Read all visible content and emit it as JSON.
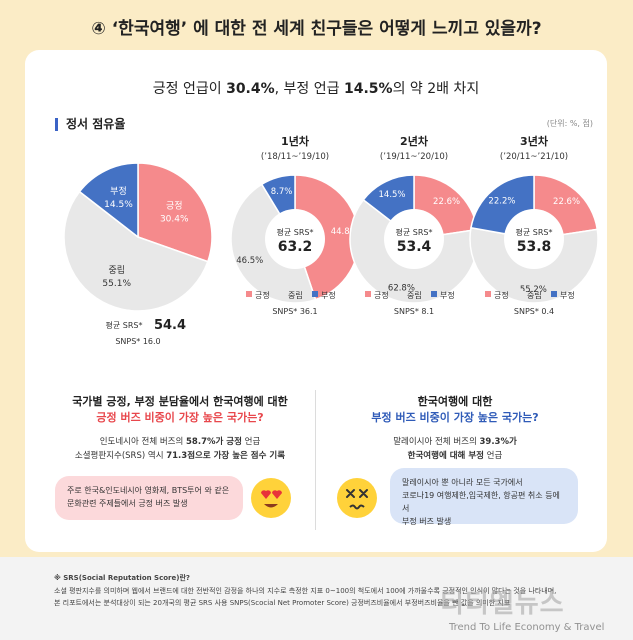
{
  "page": {
    "title": "④ ‘한국여행’ 에 대한 전 세계 친구들은 어떻게 느끼고 있을까?",
    "headline_pre": "긍정 언급이 ",
    "headline_pos": "30.4%",
    "headline_mid": ", 부정 언급 ",
    "headline_neg": "14.5%",
    "headline_post": "의 약 2배 차지",
    "section": "정서 점유율",
    "unit": "(단위: %, 점)"
  },
  "colors": {
    "positive": "#f58a8c",
    "neutral": "#e8e8e8",
    "negative": "#4472c4",
    "accent_pink": "#e8474c",
    "accent_blue": "#2f5bb8"
  },
  "legend": [
    "긍정",
    "중립",
    "부정"
  ],
  "chart_data": [
    {
      "type": "pie",
      "title": "",
      "categories": [
        "긍정",
        "중립",
        "부정"
      ],
      "values": [
        30.4,
        55.1,
        14.5
      ],
      "srs_label": "평균 SRS*",
      "srs": "54.4",
      "snps_label": "SNPS*",
      "snps": "16.0"
    },
    {
      "type": "pie",
      "title": "1년차",
      "subtitle": "(’18/11~’19/10)",
      "categories": [
        "긍정",
        "중립",
        "부정"
      ],
      "values": [
        44.8,
        46.5,
        8.7
      ],
      "srs_label": "평균 SRS*",
      "srs": "63.2",
      "snps_label": "SNPS*",
      "snps": "36.1"
    },
    {
      "type": "pie",
      "title": "2년차",
      "subtitle": "(’19/11~’20/10)",
      "categories": [
        "긍정",
        "중립",
        "부정"
      ],
      "values": [
        22.6,
        62.8,
        14.5
      ],
      "srs_label": "평균 SRS*",
      "srs": "53.4",
      "snps_label": "SNPS*",
      "snps": "8.1"
    },
    {
      "type": "pie",
      "title": "3년차",
      "subtitle": "(’20/11~’21/10)",
      "categories": [
        "긍정",
        "중립",
        "부정"
      ],
      "values": [
        22.6,
        55.2,
        22.2
      ],
      "srs_label": "평균 SRS*",
      "srs": "53.8",
      "snps_label": "SNPS*",
      "snps": "0.4"
    }
  ],
  "left_q": {
    "line1": "국가별 긍정, 부정 분담율에서 한국여행에 대한",
    "line2": "긍정 버즈 비중이 가장 높은 국가는?",
    "desc1_pre": "인도네시아 전체 버즈의 ",
    "desc1_bold": "58.7%가 긍정",
    "desc1_post": " 언급",
    "desc2_pre": "소셜평판지수(SRS) 역시 ",
    "desc2_bold": "71.3점으로 가장 높은 점수 기록",
    "bubble1": "주로 한국&인도네시아 영화제, BTS투어 와 같은",
    "bubble2": "문화관련 주제들에서 긍정 버즈 발생"
  },
  "right_q": {
    "line1": "한국여행에 대한",
    "line2": "부정 버즈 비중이 가장 높은 국가는?",
    "desc1_pre": "말레이시아 전체 버즈의 ",
    "desc1_bold": "39.3%가",
    "desc2_bold": "한국여행에 대해 부정",
    "desc2_post": " 언급",
    "bubble1": "말레이시아 뿐 아니라 모든 국가에서",
    "bubble2": "코로나19 여행제한,입국제한, 항공편 취소 등에서",
    "bubble3": "부정 버즈 발생"
  },
  "footer": {
    "heading": "※ SRS(Social Reputation Score)란?",
    "line1": "소셜 평판지수를 의미하며 웹에서 브랜드에 대한 전반적인 감정을 하나의 지수로 측정한 지표 0~100의 척도에서 100에 가까울수록 긍정적인 인식이 많다는 것을 나타내며,",
    "line2": "본 리포트에서는 분석대상이 되는 20개국의 평균 SRS 사용 SNPS(Scocial Net Promoter Score) 긍정버즈비율에서 부정버즈비율을 뺀 값을 의미한 지표"
  },
  "watermark": {
    "main": "티티엘뉴스",
    "sub": "Trend To Life Economy & Travel"
  }
}
